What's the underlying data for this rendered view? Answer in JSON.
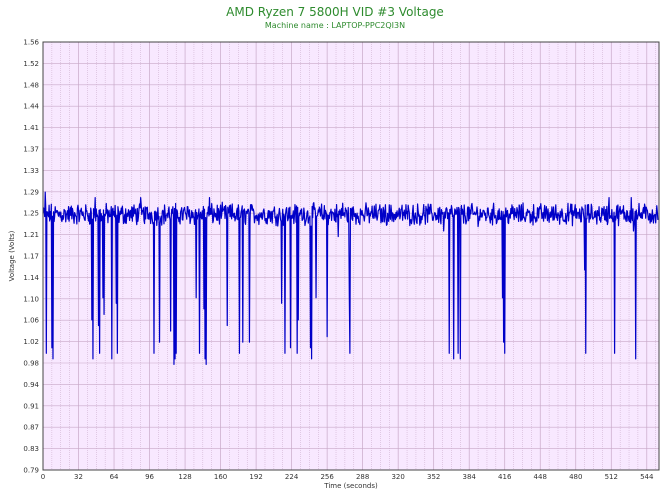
{
  "chart_data": {
    "type": "line",
    "title": "AMD Ryzen 7 5800H VID #3 Voltage",
    "subtitle": "Machine name : LAPTOP-PPC2QI3N",
    "xlabel": "Time (seconds)",
    "ylabel": "Voltage (Volts)",
    "xlim": [
      0,
      555
    ],
    "ylim": [
      0.79,
      1.56
    ],
    "x_ticks": [
      "0",
      "32",
      "64",
      "96",
      "128",
      "160",
      "192",
      "224",
      "256",
      "288",
      "320",
      "352",
      "384",
      "416",
      "448",
      "480",
      "512",
      "544"
    ],
    "y_ticks": [
      "1.56",
      "1.52",
      "1.48",
      "1.44",
      "1.41",
      "1.37",
      "1.33",
      "1.29",
      "1.25",
      "1.21",
      "1.17",
      "1.14",
      "1.10",
      "1.06",
      "1.02",
      "0.98",
      "0.94",
      "0.91",
      "0.87",
      "0.83",
      "0.79"
    ],
    "grid": true,
    "plot_background": "#f8e8ff",
    "grid_color": "#c8a8c8",
    "line_color": "#0000c8",
    "baseline_range": [
      1.22,
      1.28
    ],
    "series": [
      {
        "name": "",
        "spikes": [
          [
            2,
            1.29
          ],
          [
            3,
            1.0
          ],
          [
            8,
            1.01
          ],
          [
            9,
            0.99
          ],
          [
            44,
            1.06
          ],
          [
            45,
            0.99
          ],
          [
            47,
            1.28
          ],
          [
            50,
            1.05
          ],
          [
            51,
            1.0
          ],
          [
            54,
            1.1
          ],
          [
            55,
            1.07
          ],
          [
            62,
            0.99
          ],
          [
            66,
            1.09
          ],
          [
            67,
            1.0
          ],
          [
            88,
            1.28
          ],
          [
            100,
            1.0
          ],
          [
            105,
            1.02
          ],
          [
            115,
            1.04
          ],
          [
            118,
            0.98
          ],
          [
            119,
            0.99
          ],
          [
            120,
            1.0
          ],
          [
            138,
            1.1
          ],
          [
            141,
            1.0
          ],
          [
            145,
            1.08
          ],
          [
            146,
            0.99
          ],
          [
            147,
            0.98
          ],
          [
            150,
            1.28
          ],
          [
            166,
            1.05
          ],
          [
            177,
            1.0
          ],
          [
            180,
            1.02
          ],
          [
            186,
            1.02
          ],
          [
            215,
            1.09
          ],
          [
            218,
            1.0
          ],
          [
            223,
            1.01
          ],
          [
            229,
            1.0
          ],
          [
            230,
            1.06
          ],
          [
            241,
            1.01
          ],
          [
            242,
            0.99
          ],
          [
            246,
            1.1
          ],
          [
            256,
            1.03
          ],
          [
            266,
            1.21
          ],
          [
            270,
            1.27
          ],
          [
            276,
            1.1
          ],
          [
            276.5,
            1.0
          ],
          [
            361,
            1.22
          ],
          [
            366,
            1.0
          ],
          [
            370,
            0.99
          ],
          [
            374,
            1.0
          ],
          [
            376,
            0.99
          ],
          [
            414,
            1.1
          ],
          [
            415,
            1.02
          ],
          [
            416,
            1.0
          ],
          [
            488,
            1.15
          ],
          [
            489,
            1.0
          ],
          [
            510,
            1.28
          ],
          [
            515,
            1.0
          ],
          [
            530,
            1.28
          ],
          [
            532,
            1.22
          ],
          [
            534,
            0.99
          ]
        ]
      }
    ]
  }
}
